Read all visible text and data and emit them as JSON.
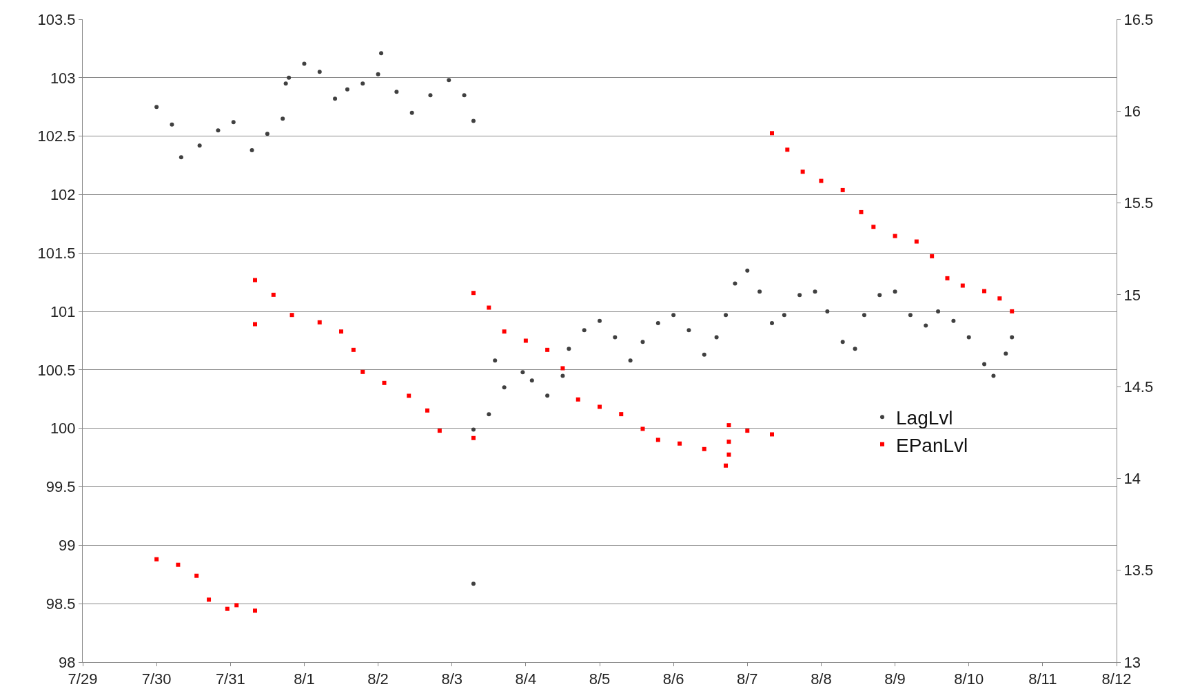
{
  "chart_data": {
    "type": "scatter",
    "xlim": [
      "--07-29",
      "--08-12"
    ],
    "xticks": [
      {
        "value": "--07-29",
        "label": "7/29"
      },
      {
        "value": "--07-30",
        "label": "7/30"
      },
      {
        "value": "--07-31",
        "label": "7/31"
      },
      {
        "value": "--08-01",
        "label": "8/1"
      },
      {
        "value": "--08-02",
        "label": "8/2"
      },
      {
        "value": "--08-03",
        "label": "8/3"
      },
      {
        "value": "--08-04",
        "label": "8/4"
      },
      {
        "value": "--08-05",
        "label": "8/5"
      },
      {
        "value": "--08-06",
        "label": "8/6"
      },
      {
        "value": "--08-07",
        "label": "8/7"
      },
      {
        "value": "--08-08",
        "label": "8/8"
      },
      {
        "value": "--08-09",
        "label": "8/9"
      },
      {
        "value": "--08-10",
        "label": "8/10"
      },
      {
        "value": "--08-11",
        "label": "8/11"
      },
      {
        "value": "--08-12",
        "label": "8/12"
      }
    ],
    "ylim": [
      98,
      103.5
    ],
    "yticks": [
      98,
      98.5,
      99,
      99.5,
      100,
      100.5,
      101,
      101.5,
      102,
      102.5,
      103,
      103.5
    ],
    "y2lim": [
      13,
      16.5
    ],
    "y2ticks": [
      13,
      13.5,
      14,
      14.5,
      15,
      15.5,
      16,
      16.5
    ],
    "grid": "y",
    "legend": "right",
    "series": [
      {
        "name": "LagLvl",
        "color": "#404040",
        "marker": "circle",
        "x": [
          "--07-30T00:00",
          "--07-30T05:00",
          "--07-30T08:00",
          "--07-30T14:00",
          "--07-30T20:00",
          "--07-31T01:00",
          "--07-31T07:00",
          "--07-31T12:00",
          "--07-31T17:00",
          "--07-31T18:00",
          "--07-31T19:00",
          "--08-01T00:00",
          "--08-01T05:00",
          "--08-01T10:00",
          "--08-01T14:00",
          "--08-01T19:00",
          "--08-02T00:00",
          "--08-02T01:00",
          "--08-02T06:00",
          "--08-02T11:00",
          "--08-02T17:00",
          "--08-02T23:00",
          "--08-03T04:00",
          "--08-03T07:00",
          "--08-03T07:00",
          "--08-03T07:00",
          "--08-03T12:00",
          "--08-03T14:00",
          "--08-03T17:00",
          "--08-03T23:00",
          "--08-04T02:00",
          "--08-04T07:00",
          "--08-04T12:00",
          "--08-04T14:00",
          "--08-04T19:00",
          "--08-05T00:00",
          "--08-05T05:00",
          "--08-05T10:00",
          "--08-05T14:00",
          "--08-05T19:00",
          "--08-06T00:00",
          "--08-06T05:00",
          "--08-06T10:00",
          "--08-06T14:00",
          "--08-06T17:00",
          "--08-06T20:00",
          "--08-07T00:00",
          "--08-07T04:00",
          "--08-07T08:00",
          "--08-07T12:00",
          "--08-07T17:00",
          "--08-07T22:00",
          "--08-08T02:00",
          "--08-08T07:00",
          "--08-08T11:00",
          "--08-08T14:00",
          "--08-08T19:00",
          "--08-09T00:00",
          "--08-09T05:00",
          "--08-09T10:00",
          "--08-09T14:00",
          "--08-09T19:00",
          "--08-10T00:00",
          "--08-10T05:00",
          "--08-10T08:00",
          "--08-10T12:00",
          "--08-10T14:00"
        ],
        "values": [
          102.75,
          102.6,
          102.32,
          102.42,
          102.55,
          102.62,
          102.38,
          102.52,
          102.65,
          102.95,
          103.0,
          103.12,
          103.05,
          102.82,
          102.9,
          102.95,
          103.03,
          103.21,
          102.88,
          102.7,
          102.85,
          102.98,
          102.85,
          102.63,
          98.67,
          99.99,
          100.12,
          100.58,
          100.35,
          100.48,
          100.41,
          100.28,
          100.45,
          100.68,
          100.84,
          100.92,
          100.78,
          100.58,
          100.74,
          100.9,
          100.97,
          100.84,
          100.63,
          100.78,
          100.97,
          101.24,
          101.35,
          101.17,
          100.9,
          100.97,
          101.14,
          101.17,
          101.0,
          100.74,
          100.68,
          100.97,
          101.14,
          101.17,
          100.97,
          100.88,
          101.0,
          100.92,
          100.78,
          100.55,
          100.45,
          100.64,
          100.78
        ]
      },
      {
        "name": "EPanLvl",
        "color": "#ff0000",
        "marker": "square",
        "axis": "y2",
        "x": [
          "--07-30T00:00",
          "--07-30T07:00",
          "--07-30T13:00",
          "--07-30T17:00",
          "--07-30T23:00",
          "--07-31T02:00",
          "--07-31T08:00",
          "--07-31T08:00",
          "--07-31T08:00",
          "--07-31T14:00",
          "--07-31T20:00",
          "--08-01T05:00",
          "--08-01T12:00",
          "--08-01T16:00",
          "--08-01T19:00",
          "--08-02T02:00",
          "--08-02T10:00",
          "--08-02T16:00",
          "--08-02T20:00",
          "--08-03T07:00",
          "--08-03T07:00",
          "--08-03T12:00",
          "--08-03T17:00",
          "--08-04T00:00",
          "--08-04T07:00",
          "--08-04T12:00",
          "--08-04T17:00",
          "--08-05T00:00",
          "--08-05T07:00",
          "--08-05T14:00",
          "--08-05T19:00",
          "--08-06T02:00",
          "--08-06T10:00",
          "--08-06T17:00",
          "--08-06T18:00",
          "--08-06T18:00",
          "--08-06T18:00",
          "--08-07T00:00",
          "--08-07T08:00",
          "--08-07T08:00",
          "--08-07T13:00",
          "--08-07T18:00",
          "--08-08T00:00",
          "--08-08T07:00",
          "--08-08T13:00",
          "--08-08T17:00",
          "--08-09T00:00",
          "--08-09T07:00",
          "--08-09T12:00",
          "--08-09T17:00",
          "--08-09T22:00",
          "--08-10T05:00",
          "--08-10T10:00",
          "--08-10T14:00"
        ],
        "values": [
          13.56,
          13.53,
          13.47,
          13.34,
          13.29,
          13.31,
          13.28,
          14.84,
          15.08,
          15.0,
          14.89,
          14.85,
          14.8,
          14.7,
          14.58,
          14.52,
          14.45,
          14.37,
          14.26,
          14.22,
          15.01,
          14.93,
          14.8,
          14.75,
          14.7,
          14.6,
          14.43,
          14.39,
          14.35,
          14.27,
          14.21,
          14.19,
          14.16,
          14.07,
          14.13,
          14.2,
          14.29,
          14.26,
          14.24,
          15.88,
          15.79,
          15.67,
          15.62,
          15.57,
          15.45,
          15.37,
          15.32,
          15.29,
          15.21,
          15.09,
          15.05,
          15.02,
          14.98,
          14.91
        ]
      }
    ]
  }
}
